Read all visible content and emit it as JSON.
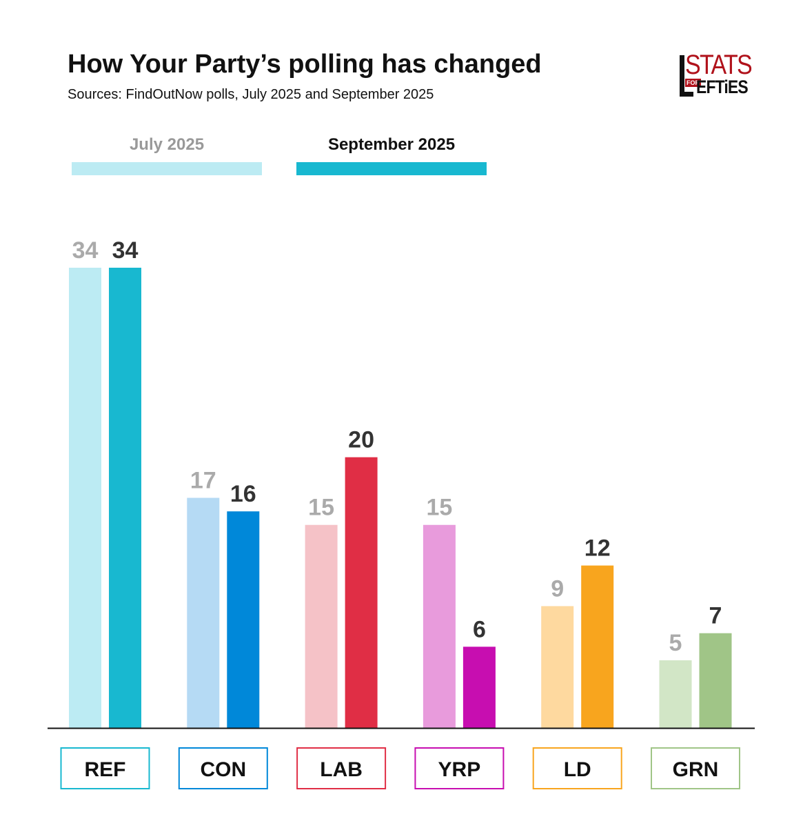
{
  "chart_data": {
    "type": "bar",
    "title": "How Your Party’s polling has changed",
    "subtitle": "Sources: FindOutNow polls, July 2025 and September 2025",
    "categories": [
      "REF",
      "CON",
      "LAB",
      "YRP",
      "LD",
      "GRN"
    ],
    "series": [
      {
        "name": "July 2025",
        "values": [
          34,
          17,
          15,
          15,
          9,
          5
        ],
        "colors": [
          "#bcebf3",
          "#b5daf4",
          "#f5c2c7",
          "#e89bdc",
          "#fed99f",
          "#d2e6c6"
        ],
        "label_color": "#aaaaaa",
        "legend_color": "#bcebf3"
      },
      {
        "name": "September 2025",
        "values": [
          34,
          16,
          20,
          6,
          12,
          7
        ],
        "colors": [
          "#18b8d0",
          "#0088d9",
          "#e02e45",
          "#c70eb0",
          "#f8a51e",
          "#a0c587"
        ],
        "label_color": "#333333",
        "legend_color": "#18b8d0"
      }
    ],
    "category_border_colors": [
      "#18b8d0",
      "#0088d9",
      "#e02e45",
      "#c70eb0",
      "#f8a51e",
      "#a0c587"
    ],
    "ylim": [
      0,
      34
    ],
    "xlabel": "",
    "ylabel": "",
    "grid": false,
    "legend_position": "top-left"
  },
  "logo": {
    "stats": "STATS",
    "for": "FOR",
    "lefties": "EFTiES"
  }
}
